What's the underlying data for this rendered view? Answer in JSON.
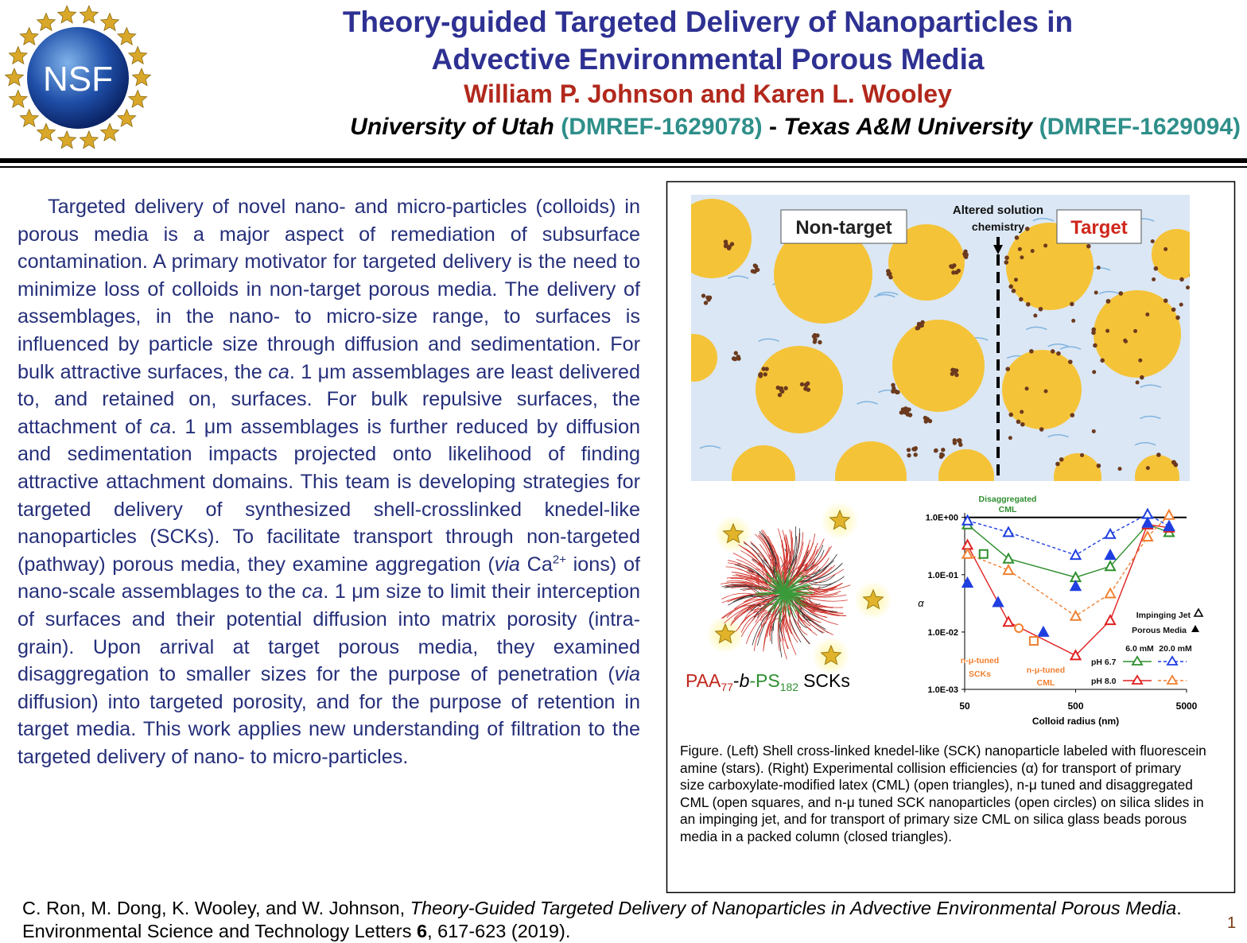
{
  "header": {
    "logo": "NSF",
    "title": [
      "Theory-guided Targeted Delivery of Nanoparticles in",
      "Advective Environmental Porous Media"
    ],
    "authors": "William P. Johnson and Karen L. Wooley",
    "affiliation": [
      "University of Utah",
      "(DMREF-1629078)",
      "-",
      "Texas A&M University",
      "(DMREF-1629094)"
    ]
  },
  "body": [
    "Targeted delivery of novel nano- and micro-particles (colloids) in porous media is a major aspect of remediation of subsurface contamination. A primary motivator for targeted delivery is the need to minimize loss of colloids in non-target porous media. The delivery of assemblages, in the nano- to micro-size range, to surfaces is influenced by particle size through diffusion and sedimentation. For bulk attractive surfaces, the ",
    "ca",
    ". 1 μm assemblages are least delivered to, and retained on, surfaces. For bulk repulsive surfaces, the attachment of ",
    "ca",
    ". 1 μm assemblages is further reduced by diffusion and sedimentation impacts projected onto likelihood of finding attractive attachment domains. This team is developing strategies for targeted delivery of synthesized shell-crosslinked knedel-like nanoparticles (SCKs). To facilitate transport through non-targeted (pathway) porous media, they examine aggregation (",
    "via",
    " Ca",
    "2+",
    " ions) of nano-scale assemblages to the ",
    "ca",
    ". 1 μm size to limit their interception of surfaces and their potential diffusion into matrix porosity (intra-grain). Upon arrival at target porous media, they examined disaggregation to smaller sizes for the purpose of penetration (",
    "via",
    " diffusion) into targeted porosity, and for the purpose of retention in target media. This work applies new understanding of filtration to the targeted delivery of nano- to micro-particles."
  ],
  "figure": {
    "non_target": "Non-target",
    "target": "Target",
    "altered": [
      "Altered solution",
      "chemistry"
    ],
    "sck_label": [
      "PAA",
      "77",
      "-",
      "b",
      "-PS",
      "182",
      "SCKs"
    ],
    "caption": "Figure. (Left) Shell cross-linked knedel-like (SCK) nanoparticle labeled with fluorescein amine (stars). (Right) Experimental collision efficiencies (α) for transport of primary size carboxylate-modified latex (CML) (open triangles), n-μ tuned and disaggregated CML (open squares, and n-μ tuned SCK nanoparticles (open circles) on silica slides in an impinging jet, and for transport of primary size CML on silica glass beads porous media in a packed column (closed triangles)."
  },
  "chart_data": {
    "type": "scatter",
    "x_label": "Colloid radius (nm)",
    "y_label": "α",
    "log_x": true,
    "log_y": true,
    "xlim": [
      50,
      5000
    ],
    "ylim": [
      0.001,
      1.2
    ],
    "xticks": [
      50,
      500,
      5000
    ],
    "yticks": [
      {
        "value": 1,
        "label": "1.0E+00"
      },
      {
        "value": 0.1,
        "label": "1.0E-01"
      },
      {
        "value": 0.01,
        "label": "1.0E-02"
      },
      {
        "value": 0.001,
        "label": "1.0E-03"
      }
    ],
    "hline": 1,
    "series": [
      {
        "color": "#2f8f2f",
        "dash": false,
        "marker": "open-triangle",
        "x": [
          53,
          124,
          500,
          1026,
          2227,
          3478
        ],
        "values": [
          0.75,
          0.19,
          0.09,
          0.14,
          0.75,
          0.55
        ]
      },
      {
        "color": "#e02020",
        "dash": false,
        "marker": "open-triangle",
        "x": [
          53,
          124,
          500,
          1026,
          2227,
          3478
        ],
        "values": [
          0.33,
          0.015,
          0.0039,
          0.016,
          0.75,
          0.66
        ]
      },
      {
        "color": "#1f3fe0",
        "dash": true,
        "marker": "open-triangle",
        "x": [
          53,
          124,
          500,
          1026,
          2227,
          3478
        ],
        "values": [
          0.88,
          0.55,
          0.22,
          0.51,
          1.14,
          0.7
        ]
      },
      {
        "color": "#f08030",
        "dash": true,
        "marker": "open-triangle",
        "x": [
          53,
          124,
          500,
          1026,
          2227,
          3478
        ],
        "values": [
          0.23,
          0.12,
          0.019,
          0.047,
          0.46,
          1.1
        ]
      },
      {
        "color": "#1f3fe0",
        "dash": false,
        "marker": "filled-triangle",
        "line": false,
        "x": [
          53,
          100,
          256,
          500,
          1026,
          2227,
          3478
        ],
        "values": [
          0.072,
          0.033,
          0.01,
          0.063,
          0.22,
          0.8,
          0.7
        ]
      },
      {
        "color": "#2f8f2f",
        "dash": false,
        "marker": "open-square",
        "line": false,
        "x": [
          74
        ],
        "values": [
          0.23
        ]
      },
      {
        "color": "#f08030",
        "dash": false,
        "marker": "open-square",
        "line": false,
        "x": [
          210
        ],
        "values": [
          0.007
        ]
      },
      {
        "color": "#f08030",
        "dash": false,
        "marker": "open-circle",
        "line": false,
        "x": [
          154
        ],
        "values": [
          0.0117
        ]
      }
    ],
    "annotations": [
      "Disaggregated",
      "CML",
      "Impinging Jet",
      "Porous Media",
      "6.0 mM",
      "20.0 mM",
      "pH 6.7",
      "pH 8.0",
      "n-μ-tuned",
      "SCKs",
      "n-μ-tuned",
      "CML"
    ]
  },
  "citation": [
    "C. Ron, M. Dong, K. Wooley, and W. Johnson, ",
    "Theory-Guided Targeted Delivery of Nanoparticles in Advective Environmental Porous Media",
    ". Environmental Science and Technology Letters ",
    "6",
    ", 617-623 (2019)."
  ],
  "page_number": 1
}
